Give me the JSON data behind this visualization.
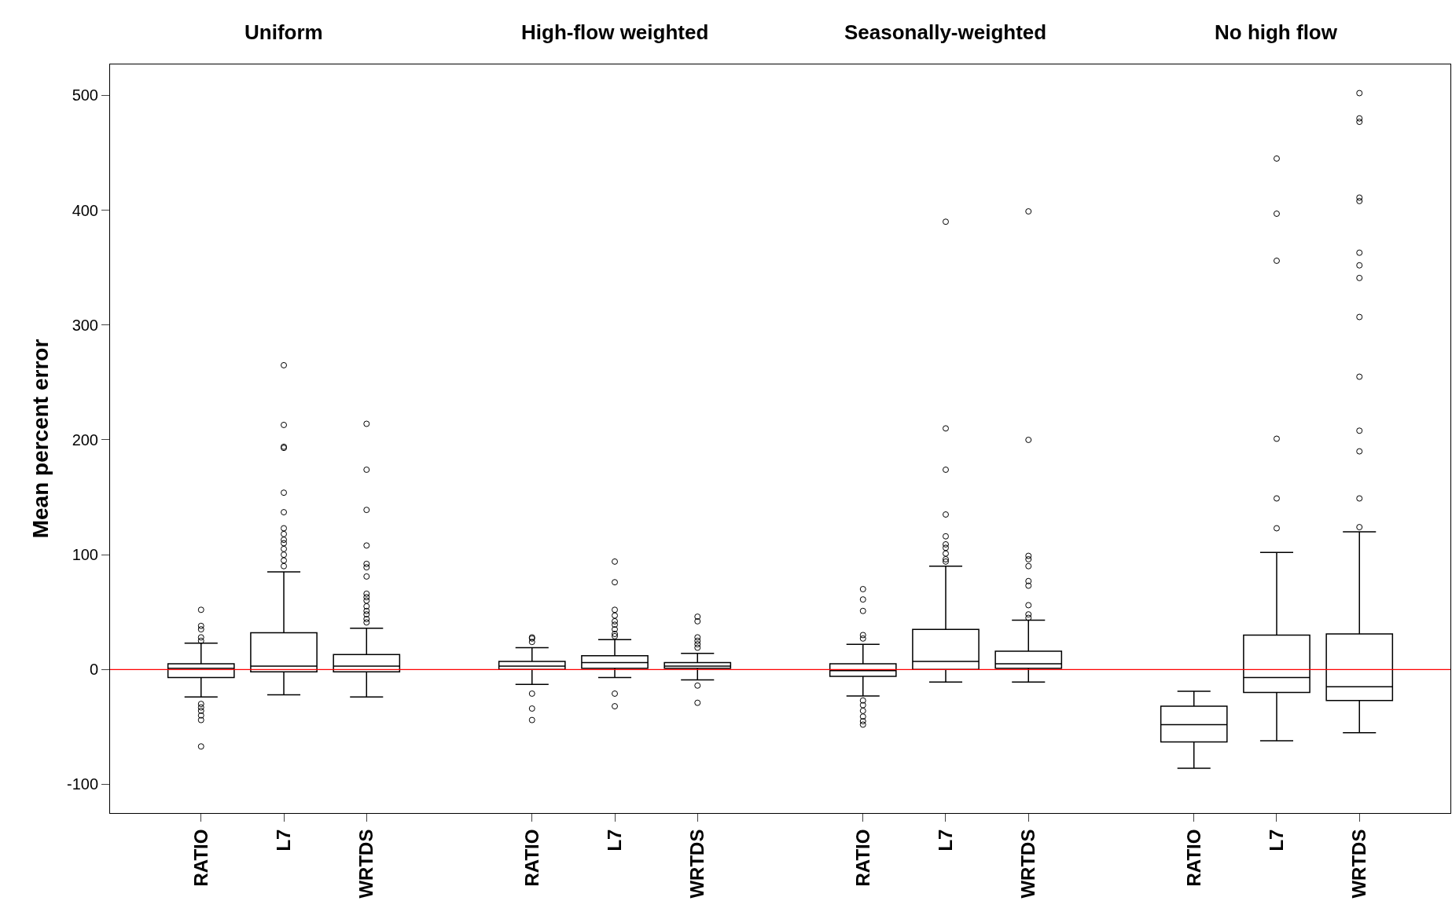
{
  "chart_data": {
    "type": "box",
    "ylabel": "Mean percent error",
    "categories": [
      "RATIO",
      "L7",
      "WRTDS",
      null,
      "RATIO",
      "L7",
      "WRTDS",
      null,
      "RATIO",
      "L7",
      "WRTDS",
      null,
      "RATIO",
      "L7",
      "WRTDS"
    ],
    "annotations": [
      "Uniform",
      "High-flow weighted",
      "Seasonally-weighted",
      "No high flow"
    ],
    "color": "#000000",
    "marker": "circle",
    "ylim": [
      -125,
      527
    ],
    "yticks": [
      -100,
      0,
      100,
      200,
      300,
      400,
      500
    ],
    "ref_lines": [
      {
        "axis": "y",
        "value": 0,
        "color": "#ff0000"
      }
    ],
    "boxes": [
      {
        "low": -24,
        "q1": -7,
        "median": 1,
        "q3": 5,
        "high": 23,
        "outliers": [
          52,
          38,
          35,
          28,
          25,
          -30,
          -33,
          -36,
          -40,
          -44,
          -67
        ]
      },
      {
        "low": -22,
        "q1": -2,
        "median": 3,
        "q3": 32,
        "high": 85,
        "outliers": [
          265,
          213,
          194,
          193,
          154,
          137,
          123,
          118,
          113,
          110,
          105,
          100,
          95,
          90
        ]
      },
      {
        "low": -24,
        "q1": -2,
        "median": 3,
        "q3": 13,
        "high": 36,
        "outliers": [
          214,
          174,
          139,
          108,
          92,
          89,
          81,
          66,
          63,
          60,
          55,
          51,
          48,
          44,
          41
        ]
      },
      null,
      {
        "low": -13,
        "q1": 0,
        "median": 3,
        "q3": 7,
        "high": 19,
        "outliers": [
          28,
          27,
          24,
          -21,
          -34,
          -44
        ]
      },
      {
        "low": -7,
        "q1": 1,
        "median": 6,
        "q3": 12,
        "high": 26,
        "outliers": [
          94,
          76,
          52,
          47,
          42,
          39,
          35,
          31,
          29,
          -21,
          -32
        ]
      },
      {
        "low": -9,
        "q1": 1,
        "median": 3,
        "q3": 6,
        "high": 14,
        "outliers": [
          46,
          42,
          28,
          25,
          22,
          19,
          -14,
          -29
        ]
      },
      null,
      {
        "low": -23,
        "q1": -6,
        "median": -1,
        "q3": 5,
        "high": 22,
        "outliers": [
          70,
          61,
          51,
          30,
          27,
          -27,
          -31,
          -36,
          -41,
          -45,
          -48
        ]
      },
      {
        "low": -11,
        "q1": 0,
        "median": 7,
        "q3": 35,
        "high": 90,
        "outliers": [
          390,
          210,
          174,
          135,
          116,
          109,
          106,
          101,
          96,
          94
        ]
      },
      {
        "low": -11,
        "q1": 1,
        "median": 5,
        "q3": 16,
        "high": 43,
        "outliers": [
          399,
          200,
          99,
          96,
          90,
          77,
          73,
          56,
          48,
          45
        ]
      },
      null,
      {
        "low": -86,
        "q1": -63,
        "median": -48,
        "q3": -32,
        "high": -19
      },
      {
        "low": -62,
        "q1": -20,
        "median": -7,
        "q3": 30,
        "high": 102,
        "outliers": [
          445,
          397,
          356,
          201,
          149,
          123
        ]
      },
      {
        "low": -55,
        "q1": -27,
        "median": -15,
        "q3": 31,
        "high": 120,
        "outliers": [
          502,
          480,
          477,
          411,
          408,
          363,
          352,
          341,
          307,
          255,
          208,
          190,
          149,
          124
        ]
      }
    ]
  }
}
